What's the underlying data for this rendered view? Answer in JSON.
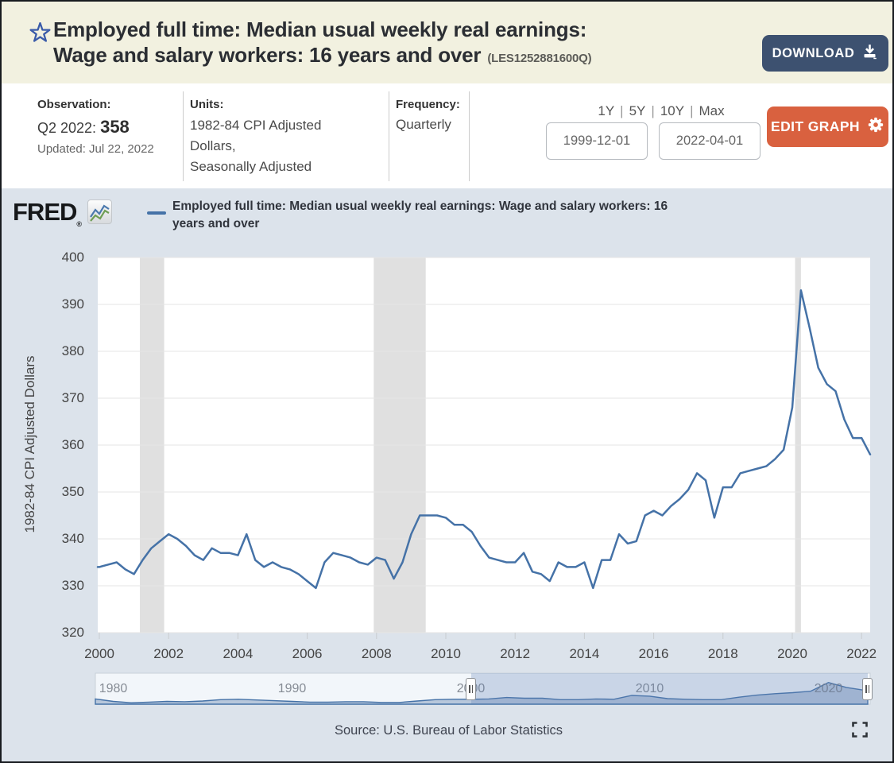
{
  "header": {
    "title_line1": "Employed full time: Median usual weekly real earnings:",
    "title_line2": "Wage and salary workers: 16 years and over",
    "series_id": "(LES1252881600Q)",
    "download_label": "DOWNLOAD"
  },
  "info_bar": {
    "observation": {
      "label": "Observation:",
      "period": "Q2 2022:",
      "value": "358",
      "updated": "Updated: Jul 22, 2022"
    },
    "units": {
      "label": "Units:",
      "line1": "1982-84 CPI Adjusted",
      "line2": "Dollars,",
      "line3": "Seasonally Adjusted"
    },
    "frequency": {
      "label": "Frequency:",
      "value": "Quarterly"
    },
    "range_shortcuts": [
      "1Y",
      "5Y",
      "10Y",
      "Max"
    ],
    "range_separator": "|",
    "date_start": "1999-12-01",
    "date_end": "2022-04-01",
    "edit_graph_label": "EDIT GRAPH"
  },
  "graph": {
    "brand": "FRED",
    "brand_reg": "®",
    "legend_label": "Employed full time: Median usual weekly real earnings: Wage and salary workers: 16 years and over",
    "source": "Source: U.S. Bureau of Labor Statistics"
  },
  "colors": {
    "series_line": "#4572a7",
    "download_button": "#3d5170",
    "edit_button": "#d9613f",
    "header_background": "#f2f1e0",
    "chart_background": "#dce3eb",
    "recession_band": "#e0e0e0",
    "navigator_fill": "#a7bbd3"
  },
  "chart_data": {
    "type": "line",
    "title": "Employed full time: Median usual weekly real earnings: Wage and salary workers: 16 years and over",
    "ylabel": "1982-84 CPI Adjusted Dollars",
    "ylim": [
      320,
      400
    ],
    "y_ticks": [
      400,
      390,
      380,
      370,
      360,
      350,
      340,
      330,
      320
    ],
    "x_tick_labels": [
      "2000",
      "2002",
      "2004",
      "2006",
      "2008",
      "2010",
      "2012",
      "2014",
      "2016",
      "2018",
      "2020",
      "2022"
    ],
    "frequency": "Quarterly",
    "start_period": "2000-Q1",
    "end_period": "2022-Q2",
    "last_point": {
      "period": "2022-Q2",
      "value": 358
    },
    "grid": true,
    "series": [
      {
        "name": "Employed full time: Median usual weekly real earnings: Wage and salary workers: 16 years and over",
        "color": "#4572a7",
        "values": [
          334,
          334.5,
          335,
          333.5,
          332.5,
          335.5,
          338,
          339.5,
          341,
          340,
          338.5,
          336.5,
          335.5,
          338,
          337,
          337,
          336.5,
          341,
          335.5,
          334,
          335,
          334,
          333.5,
          332.5,
          331,
          329.5,
          335,
          337,
          336.5,
          336,
          335,
          334.5,
          336,
          335.5,
          331.5,
          335,
          341,
          345,
          345,
          345,
          344.5,
          343,
          343,
          341.5,
          338.5,
          336,
          335.5,
          335,
          335,
          337,
          333,
          332.5,
          331,
          335,
          334,
          334,
          335,
          329.5,
          335.5,
          335.5,
          341,
          339,
          339.5,
          345,
          346,
          345,
          347,
          348.5,
          350.5,
          354,
          352.5,
          344.5,
          351,
          351,
          354,
          354.5,
          355,
          355.5,
          357,
          359,
          368,
          393,
          385,
          376.5,
          373,
          371.5,
          365.5,
          361.5,
          361.5,
          358
        ]
      }
    ],
    "recessions": [
      {
        "start_year": 2001.17,
        "end_year": 2001.87
      },
      {
        "start_year": 2007.92,
        "end_year": 2009.42
      },
      {
        "start_year": 2020.08,
        "end_year": 2020.25
      }
    ],
    "navigator": {
      "x_labels": [
        "1980",
        "1990",
        "2000",
        "2010",
        "2020"
      ],
      "start_year": 1979,
      "selected_start": "1999-12-01",
      "selected_end": "2022-04-01",
      "annual_values": [
        335,
        328,
        324,
        326,
        328,
        327,
        329,
        333,
        334,
        332,
        330,
        328,
        326,
        326,
        327,
        327,
        325,
        325,
        329,
        333,
        334,
        334,
        335,
        339,
        337,
        337,
        333,
        333,
        335,
        334,
        345,
        343,
        336,
        334,
        333,
        333,
        340,
        346,
        350,
        353,
        357,
        382,
        368,
        360
      ]
    }
  }
}
